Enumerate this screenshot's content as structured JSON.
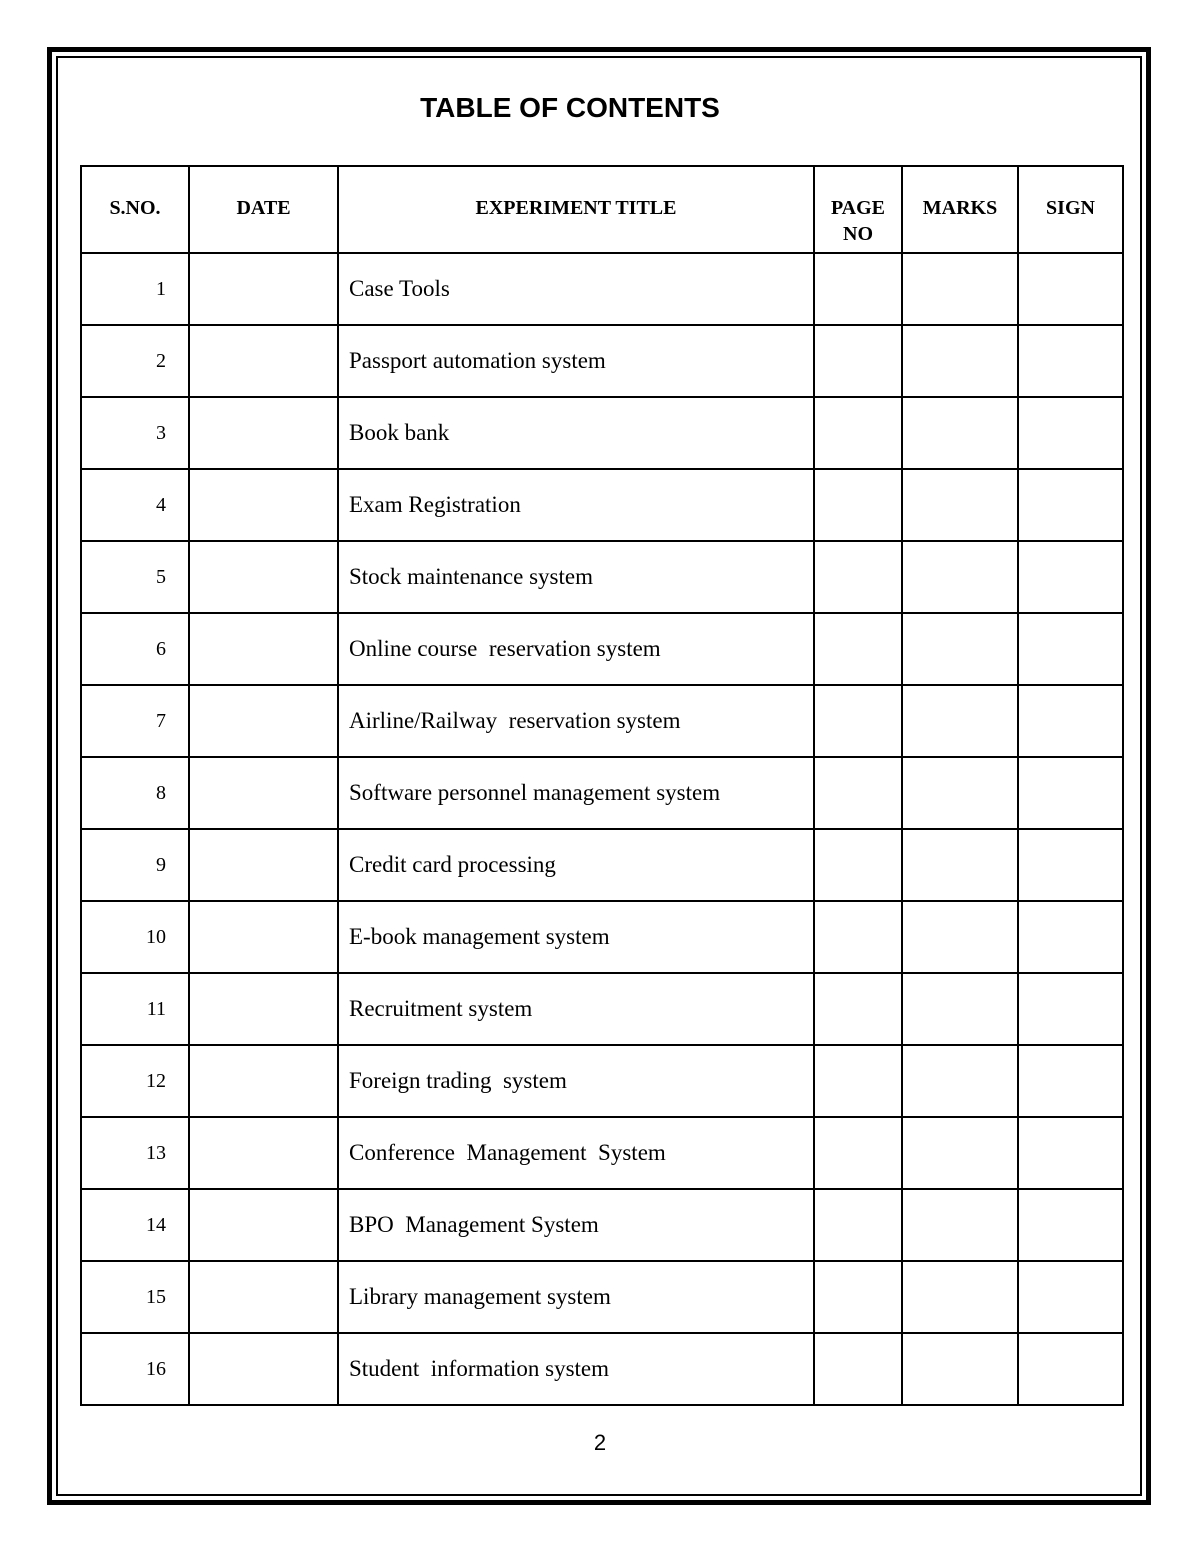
{
  "title": "TABLE OF CONTENTS",
  "headers": [
    "S.NO.",
    "DATE",
    "EXPERIMENT TITLE",
    "PAGE NO",
    "MARKS",
    "SIGN"
  ],
  "rows": [
    {
      "sno": "1",
      "title": "Case Tools"
    },
    {
      "sno": "2",
      "title": "Passport automation system"
    },
    {
      "sno": "3",
      "title": "Book bank"
    },
    {
      "sno": "4",
      "title": "Exam Registration"
    },
    {
      "sno": "5",
      "title": "Stock maintenance system"
    },
    {
      "sno": "6",
      "title": "Online course  reservation system"
    },
    {
      "sno": "7",
      "title": "Airline/Railway  reservation system"
    },
    {
      "sno": "8",
      "title": "Software personnel management system"
    },
    {
      "sno": "9",
      "title": "Credit card processing"
    },
    {
      "sno": "10",
      "title": "E-book management system"
    },
    {
      "sno": "11",
      "title": "Recruitment system"
    },
    {
      "sno": "12",
      "title": "Foreign trading  system"
    },
    {
      "sno": "13",
      "title": "Conference  Management  System"
    },
    {
      "sno": "14",
      "title": "BPO  Management System"
    },
    {
      "sno": "15",
      "title": "Library management system"
    },
    {
      "sno": "16",
      "title": "Student  information system"
    }
  ],
  "page_number": "2"
}
